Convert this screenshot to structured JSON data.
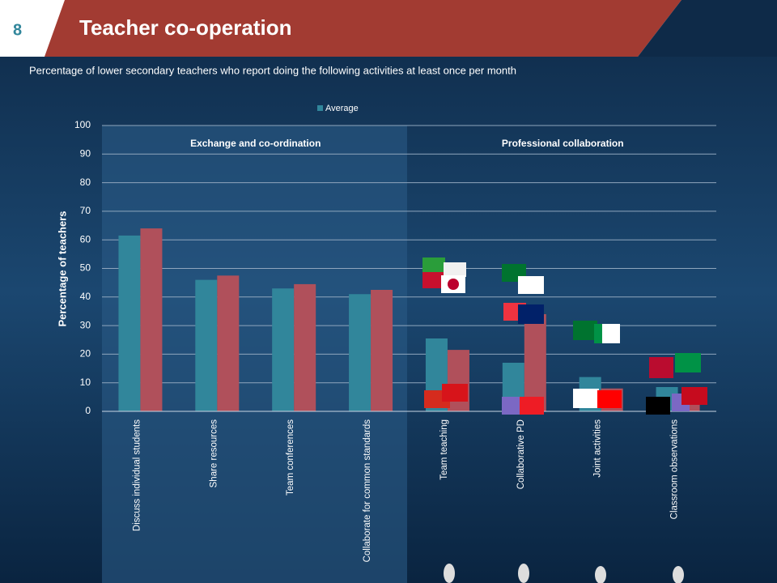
{
  "slide_number": "8",
  "title": "Teacher co-operation",
  "subtitle": "Percentage of lower secondary teachers who report doing the following activities at least once per month",
  "chart_data": {
    "type": "bar",
    "y_label": "Percentage of teachers",
    "annotations": [
      "Exchange and co-ordination",
      "Professional collaboration"
    ],
    "categories": [
      "Discuss individual students",
      "Share resources",
      "Team conferences",
      "Collaborate for common standards",
      "Team teaching",
      "Collaborative PD",
      "Joint activities",
      "Classroom observations"
    ],
    "series": [
      {
        "name": "Average",
        "color": "#31869b",
        "values": [
          61.5,
          46,
          43,
          41,
          25.5,
          17,
          12,
          8.5
        ]
      },
      {
        "color": "#b0505b",
        "values": [
          64,
          47.5,
          44.5,
          42.5,
          21.5,
          34,
          8,
          6
        ]
      }
    ],
    "ylim": [
      0,
      100
    ],
    "yticks": [
      0,
      10,
      20,
      30,
      40,
      50,
      60,
      70,
      80,
      90,
      100
    ],
    "grid": true,
    "legend": "top"
  }
}
